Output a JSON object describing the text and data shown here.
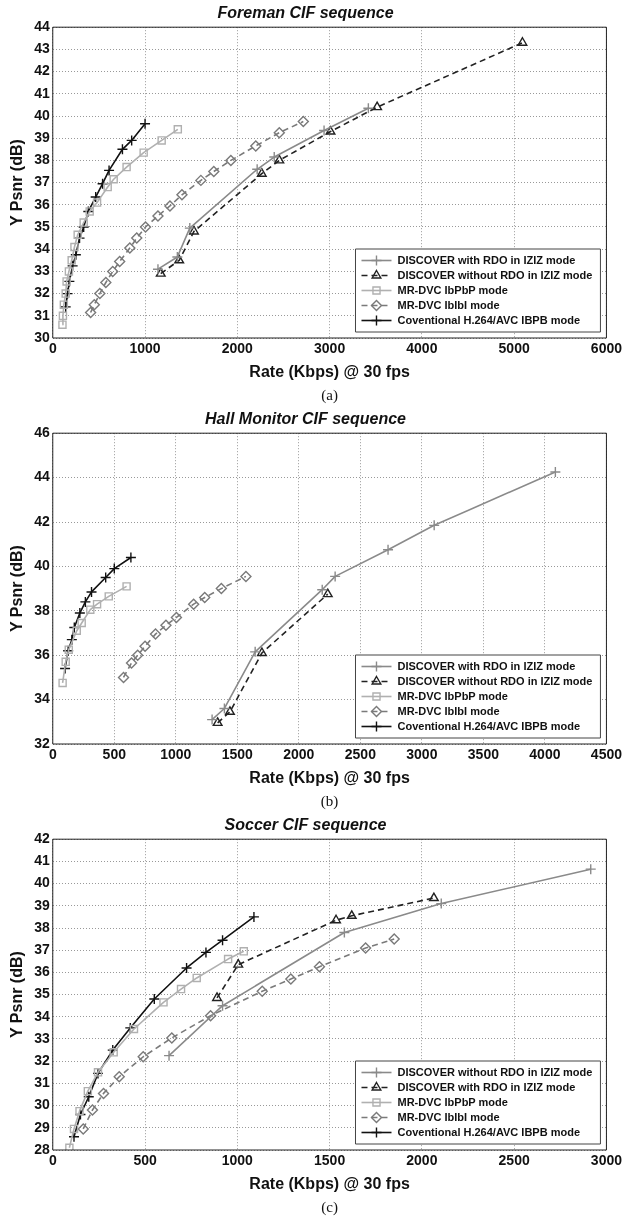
{
  "chart_data": [
    {
      "type": "line",
      "title": "Foreman CIF sequence",
      "xlabel": "Rate (Kbps) @ 30 fps",
      "ylabel": "Y Psnr (dB)",
      "annotations": [
        "(a)"
      ],
      "xlim": [
        0,
        6000
      ],
      "xticks": [
        0,
        1000,
        2000,
        3000,
        4000,
        5000,
        6000
      ],
      "ylim": [
        30,
        44
      ],
      "yticks": [
        30,
        31,
        32,
        33,
        34,
        35,
        36,
        37,
        38,
        39,
        40,
        41,
        42,
        43,
        44
      ],
      "grid": true,
      "legend": "bottom right",
      "series": [
        {
          "name": "DISCOVER with RDO in IZIZ mode",
          "color": "#8a8a8a",
          "marker": "cross",
          "line_style": "solid",
          "x": [
            1140,
            1350,
            1485,
            2215,
            2400,
            2940,
            3420
          ],
          "values": [
            33.1,
            33.65,
            34.95,
            37.6,
            38.15,
            39.35,
            40.35
          ]
        },
        {
          "name": "DISCOVER without RDO in IZIZ mode",
          "color": "#222222",
          "marker": "triangle",
          "line_style": "dashed",
          "x": [
            1170,
            1370,
            1530,
            2265,
            2455,
            3010,
            3515,
            5090
          ],
          "values": [
            32.9,
            33.5,
            34.8,
            37.4,
            38.0,
            39.3,
            40.4,
            43.3
          ]
        },
        {
          "name": "MR-DVC IbPbP mode",
          "color": "#b0b0b0",
          "marker": "square",
          "line_style": "solid",
          "x": [
            105,
            110,
            120,
            140,
            150,
            175,
            205,
            235,
            270,
            335,
            400,
            480,
            595,
            660,
            800,
            985,
            1180,
            1355
          ],
          "values": [
            30.6,
            31.0,
            31.5,
            32.0,
            32.55,
            33.0,
            33.5,
            34.1,
            34.65,
            35.2,
            35.7,
            36.1,
            36.8,
            37.15,
            37.7,
            38.35,
            38.9,
            39.4
          ]
        },
        {
          "name": "MR-DVC IbIbI mode",
          "color": "#7a7a7a",
          "marker": "diamond",
          "line_style": "dashed",
          "x": [
            410,
            450,
            510,
            575,
            650,
            725,
            835,
            910,
            1005,
            1140,
            1270,
            1400,
            1605,
            1745,
            1930,
            2200,
            2455,
            2715
          ],
          "values": [
            31.15,
            31.5,
            32.0,
            32.5,
            33.0,
            33.45,
            34.05,
            34.5,
            35.0,
            35.5,
            35.95,
            36.45,
            37.1,
            37.5,
            38.0,
            38.65,
            39.25,
            39.75
          ]
        },
        {
          "name": "Coventional H.264/AVC IBPB mode",
          "color": "#111111",
          "marker": "cross",
          "line_style": "solid",
          "x": [
            140,
            160,
            180,
            215,
            250,
            290,
            335,
            385,
            465,
            540,
            610,
            755,
            855,
            1000
          ],
          "values": [
            31.4,
            32.0,
            32.55,
            33.25,
            33.75,
            34.5,
            35.0,
            35.7,
            36.35,
            36.95,
            37.55,
            38.5,
            38.9,
            39.65
          ]
        }
      ]
    },
    {
      "type": "line",
      "title": "Hall Monitor CIF sequence",
      "xlabel": "Rate (Kbps) @ 30 fps",
      "ylabel": "Y Psnr (dB)",
      "annotations": [
        "(b)"
      ],
      "xlim": [
        0,
        4500
      ],
      "xticks": [
        0,
        500,
        1000,
        1500,
        2000,
        2500,
        3000,
        3500,
        4000,
        4500
      ],
      "ylim": [
        32,
        46
      ],
      "yticks": [
        32,
        34,
        36,
        38,
        40,
        42,
        44,
        46
      ],
      "grid": true,
      "legend": "bottom right",
      "series": [
        {
          "name": "DISCOVER with RDO in IZIZ mode",
          "color": "#8a8a8a",
          "marker": "cross",
          "line_style": "solid",
          "x": [
            1295,
            1395,
            1645,
            2190,
            2295,
            2725,
            3100,
            4085
          ],
          "values": [
            33.1,
            33.6,
            36.15,
            38.95,
            39.55,
            40.75,
            41.85,
            44.25
          ]
        },
        {
          "name": "DISCOVER without RDO in IZIZ mode",
          "color": "#222222",
          "marker": "triangle",
          "line_style": "dashed",
          "x": [
            1340,
            1440,
            1700,
            2235
          ],
          "values": [
            32.95,
            33.45,
            36.1,
            38.75
          ]
        },
        {
          "name": "MR-DVC IbPbP mode",
          "color": "#b0b0b0",
          "marker": "square",
          "line_style": "solid",
          "x": [
            80,
            105,
            130,
            195,
            235,
            305,
            360,
            455,
            600
          ],
          "values": [
            34.75,
            35.7,
            36.25,
            37.1,
            37.45,
            38.05,
            38.3,
            38.65,
            39.1
          ]
        },
        {
          "name": "MR-DVC IbIbI mode",
          "color": "#7a7a7a",
          "marker": "diamond",
          "line_style": "dashed",
          "x": [
            575,
            640,
            690,
            750,
            835,
            920,
            1005,
            1145,
            1235,
            1370,
            1570
          ],
          "values": [
            35.0,
            35.65,
            36.0,
            36.4,
            36.95,
            37.35,
            37.7,
            38.3,
            38.6,
            39.0,
            39.55
          ]
        },
        {
          "name": "Coventional H.264/AVC IBPB mode",
          "color": "#111111",
          "marker": "cross",
          "line_style": "solid",
          "x": [
            100,
            125,
            155,
            175,
            220,
            265,
            315,
            430,
            500,
            635
          ],
          "values": [
            35.4,
            36.2,
            36.7,
            37.25,
            37.9,
            38.4,
            38.85,
            39.5,
            39.9,
            40.4
          ]
        }
      ]
    },
    {
      "type": "line",
      "title": "Soccer CIF sequence",
      "xlabel": "Rate (Kbps) @ 30 fps",
      "ylabel": "Y Psnr (dB)",
      "annotations": [
        "(c)"
      ],
      "xlim": [
        0,
        3000
      ],
      "xticks": [
        0,
        500,
        1000,
        1500,
        2000,
        2500,
        3000
      ],
      "ylim": [
        28,
        42
      ],
      "yticks": [
        28,
        29,
        30,
        31,
        32,
        33,
        34,
        35,
        36,
        37,
        38,
        39,
        40,
        41,
        42
      ],
      "grid": true,
      "legend": "bottom right",
      "series": [
        {
          "name": "DISCOVER without RDO in IZIZ mode",
          "color": "#8a8a8a",
          "marker": "cross",
          "line_style": "solid",
          "x": [
            630,
            920,
            1580,
            2105,
            2915
          ],
          "values": [
            32.25,
            34.5,
            37.8,
            39.1,
            40.65
          ]
        },
        {
          "name": "DISCOVER with RDO in IZIZ mode",
          "color": "#222222",
          "marker": "triangle",
          "line_style": "dashed",
          "x": [
            890,
            1005,
            1535,
            1620,
            2065
          ],
          "values": [
            34.85,
            36.35,
            38.35,
            38.55,
            39.35
          ]
        },
        {
          "name": "MR-DVC IbPbP mode",
          "color": "#b0b0b0",
          "marker": "square",
          "line_style": "solid",
          "x": [
            90,
            115,
            145,
            190,
            245,
            330,
            440,
            600,
            695,
            780,
            950,
            1035
          ],
          "values": [
            28.1,
            28.95,
            29.75,
            30.65,
            31.5,
            32.4,
            33.45,
            34.65,
            35.25,
            35.75,
            36.6,
            36.95
          ]
        },
        {
          "name": "MR-DVC IbIbI mode",
          "color": "#7a7a7a",
          "marker": "diamond",
          "line_style": "dashed",
          "x": [
            165,
            215,
            275,
            360,
            490,
            645,
            855,
            1135,
            1290,
            1445,
            1695,
            1850
          ],
          "values": [
            28.95,
            29.8,
            30.55,
            31.3,
            32.2,
            33.05,
            34.05,
            35.15,
            35.7,
            36.25,
            37.1,
            37.5
          ]
        },
        {
          "name": "Coventional H.264/AVC IBPB mode",
          "color": "#111111",
          "marker": "cross",
          "line_style": "solid",
          "x": [
            115,
            150,
            195,
            245,
            325,
            420,
            550,
            725,
            830,
            920,
            1090
          ],
          "values": [
            28.6,
            29.6,
            30.4,
            31.45,
            32.5,
            33.5,
            34.8,
            36.2,
            36.9,
            37.45,
            38.5
          ]
        }
      ]
    }
  ]
}
